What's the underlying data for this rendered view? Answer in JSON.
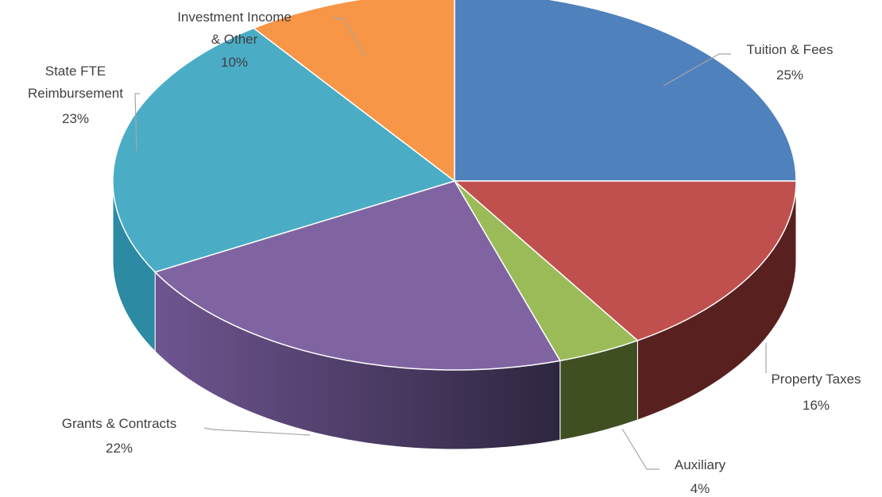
{
  "chart_data": {
    "type": "pie",
    "title": "",
    "style": "3d",
    "slices": [
      {
        "name": "Tuition & Fees",
        "value": 25,
        "label": "25%",
        "color": "#4f81bd",
        "side": "#2c4b70"
      },
      {
        "name": "Property Taxes",
        "value": 16,
        "label": "16%",
        "color": "#c0504d",
        "side": "#58201f"
      },
      {
        "name": "Auxiliary",
        "value": 4,
        "label": "4%",
        "color": "#9bbb59",
        "side": "#3f4f22"
      },
      {
        "name": "Grants & Contracts",
        "value": 22,
        "label": "22%",
        "color": "#8064a2",
        "side": "#4e3b66"
      },
      {
        "name": "State FTE Reimbursement",
        "value": 23,
        "label": "23%",
        "color": "#4bacc6",
        "side": "#2d8aa3"
      },
      {
        "name": "Investment Income & Other",
        "value": 10,
        "label": "10%",
        "color": "#f79646",
        "side": "#b86a2c"
      }
    ]
  }
}
